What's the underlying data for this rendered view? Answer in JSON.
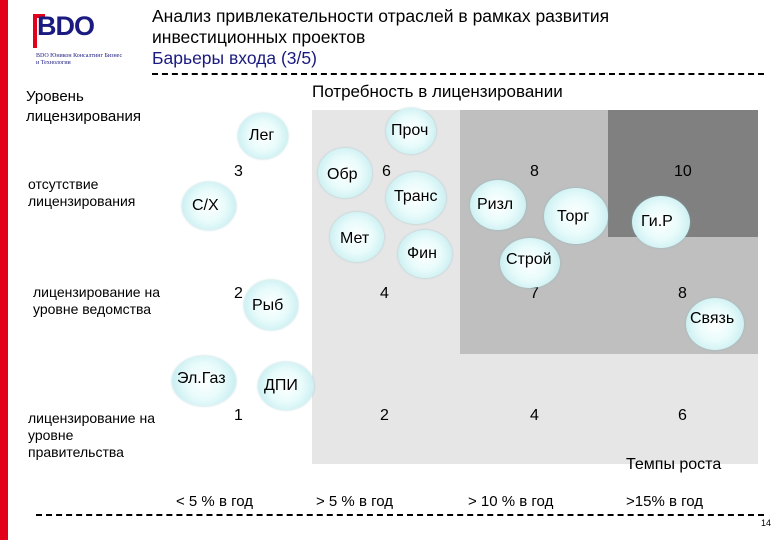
{
  "logo": {
    "brand": "BDO",
    "tagline": "BDO Юникон Консалтинг Бизнес и Технологии"
  },
  "header": {
    "title_line1": "Анализ привлекательности отраслей в рамках развития",
    "title_line2": "инвестиционных проектов",
    "subtitle": "Барьеры входа (3/5)"
  },
  "axes": {
    "y_title": "Уровень лицензирования",
    "x_title": "Потребность в лицензировании",
    "x_subtitle": "Темпы роста",
    "rows": [
      "отсутствие лицензирования",
      "лицензирование на уровне ведомства",
      "лицензирование на уровне правительства"
    ],
    "columns": [
      "< 5 % в год",
      "> 5 % в год",
      "> 10 % в год",
      ">15% в год"
    ]
  },
  "grid": {
    "colors": [
      "#ffffff",
      "#e6e6e6",
      "#bfbfbf",
      "#808080"
    ],
    "scores": {
      "r0": [
        "3",
        "6",
        "8",
        "10"
      ],
      "r1": [
        "2",
        "4",
        "7",
        "8"
      ],
      "r2": [
        "1",
        "2",
        "4",
        "6"
      ]
    }
  },
  "bubbles": [
    "Лег",
    "Проч",
    "Обр",
    "Транс",
    "Ризл",
    "Торг",
    "Ги.Р",
    "С/Х",
    "Мет",
    "Фин",
    "Строй",
    "Рыб",
    "Связь",
    "Эл.Газ",
    "ДПИ"
  ],
  "page_number": "14"
}
